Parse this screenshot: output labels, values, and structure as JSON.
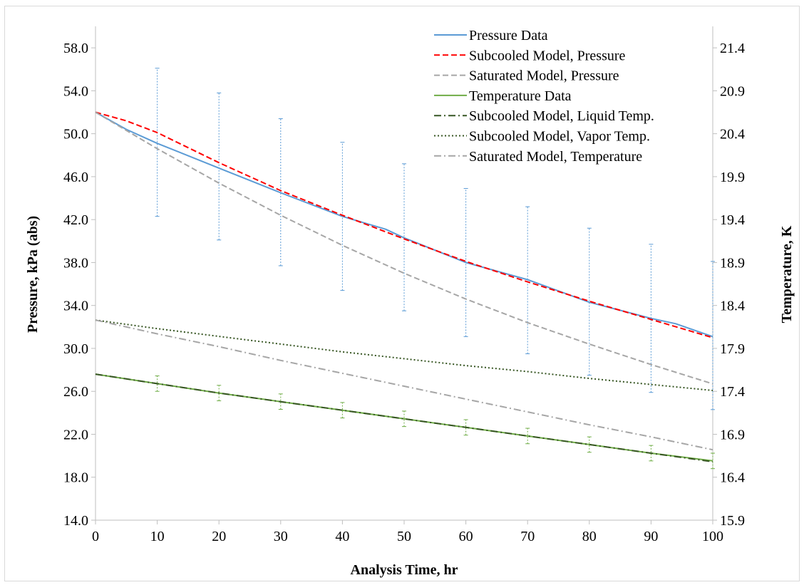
{
  "chart_data": {
    "type": "line",
    "xlabel": "Analysis Time, hr",
    "ylabel": "Pressure, kPa (abs)",
    "y2label": "Temperature, K",
    "xlim": [
      0,
      100
    ],
    "ylim": [
      14,
      60
    ],
    "y2lim": [
      15.9,
      21.65
    ],
    "x_ticks": [
      0,
      10,
      20,
      30,
      40,
      50,
      60,
      70,
      80,
      90,
      100
    ],
    "y_ticks": [
      "14.0",
      "18.0",
      "22.0",
      "26.0",
      "30.0",
      "34.0",
      "38.0",
      "42.0",
      "46.0",
      "50.0",
      "54.0",
      "58.0"
    ],
    "y2_ticks": [
      "15.9",
      "16.4",
      "16.9",
      "17.4",
      "17.9",
      "18.4",
      "18.9",
      "19.4",
      "19.9",
      "20.4",
      "20.9",
      "21.4"
    ],
    "grid": false,
    "legend_position": "top-right",
    "series": [
      {
        "name": "Pressure Data",
        "axis": "left",
        "color": "#5b9bd5",
        "dash": "solid",
        "x": [
          0,
          5,
          10,
          20,
          30,
          40,
          47,
          50,
          60,
          70,
          80,
          90,
          94,
          100
        ],
        "y": [
          52.0,
          50.4,
          49.1,
          46.8,
          44.5,
          42.3,
          41.1,
          40.3,
          38.0,
          36.4,
          34.3,
          32.8,
          32.3,
          31.1
        ]
      },
      {
        "name": "Subcooled Model, Pressure",
        "axis": "left",
        "color": "#ff0000",
        "dash": "dashed",
        "x": [
          0,
          5,
          10,
          20,
          30,
          40,
          50,
          60,
          70,
          80,
          90,
          100
        ],
        "y": [
          52.0,
          51.2,
          50.1,
          47.3,
          44.7,
          42.4,
          40.2,
          38.1,
          36.2,
          34.4,
          32.7,
          31.0
        ]
      },
      {
        "name": "Saturated Model, Pressure",
        "axis": "left",
        "color": "#a6a6a6",
        "dash": "dashed",
        "x": [
          0,
          10,
          20,
          30,
          40,
          50,
          60,
          70,
          80,
          90,
          100
        ],
        "y": [
          52.0,
          48.6,
          45.4,
          42.4,
          39.6,
          37.0,
          34.6,
          32.4,
          30.4,
          28.5,
          26.7
        ]
      },
      {
        "name": "Temperature Data",
        "axis": "right",
        "color": "#70ad47",
        "dash": "solid",
        "x": [
          0,
          10,
          20,
          30,
          40,
          50,
          60,
          70,
          80,
          90,
          100
        ],
        "y": [
          17.6,
          17.49,
          17.38,
          17.28,
          17.18,
          17.08,
          16.98,
          16.88,
          16.78,
          16.68,
          16.59
        ]
      },
      {
        "name": "Subcooled Model, Liquid Temp.",
        "axis": "right",
        "color": "#375623",
        "dash": "dashdot",
        "x": [
          0,
          10,
          20,
          30,
          40,
          50,
          60,
          70,
          80,
          90,
          100
        ],
        "y": [
          17.6,
          17.49,
          17.38,
          17.28,
          17.18,
          17.08,
          16.98,
          16.88,
          16.78,
          16.68,
          16.58
        ]
      },
      {
        "name": "Subcooled Model, Vapor Temp.",
        "axis": "right",
        "color": "#375623",
        "dash": "dotted",
        "x": [
          0,
          10,
          20,
          30,
          40,
          50,
          60,
          70,
          80,
          90,
          100
        ],
        "y": [
          18.23,
          18.13,
          18.04,
          17.95,
          17.86,
          17.78,
          17.7,
          17.63,
          17.55,
          17.48,
          17.41
        ]
      },
      {
        "name": "Saturated Model, Temperature",
        "axis": "right",
        "color": "#a6a6a6",
        "dash": "dashdot",
        "x": [
          0,
          10,
          20,
          30,
          40,
          50,
          60,
          70,
          80,
          90,
          100
        ],
        "y": [
          18.23,
          18.07,
          17.92,
          17.76,
          17.61,
          17.46,
          17.31,
          17.16,
          17.01,
          16.87,
          16.72
        ]
      }
    ],
    "error_bars": [
      {
        "series": "Pressure Data",
        "axis": "left",
        "color": "#5b9bd5",
        "x": [
          10,
          20,
          30,
          40,
          50,
          60,
          70,
          80,
          90,
          100
        ],
        "low": [
          42.3,
          40.1,
          37.7,
          35.4,
          33.5,
          31.1,
          29.5,
          27.5,
          25.9,
          24.3
        ],
        "high": [
          56.1,
          53.8,
          51.4,
          49.2,
          47.2,
          44.9,
          43.2,
          41.2,
          39.7,
          38.1
        ]
      },
      {
        "series": "Temperature Data",
        "axis": "right",
        "color": "#70ad47",
        "x": [
          10,
          20,
          30,
          40,
          50,
          60,
          70,
          80,
          90,
          100
        ],
        "low": [
          17.4,
          17.29,
          17.19,
          17.09,
          16.99,
          16.89,
          16.79,
          16.69,
          16.59,
          16.5
        ],
        "high": [
          17.58,
          17.47,
          17.37,
          17.27,
          17.17,
          17.07,
          16.97,
          16.87,
          16.77,
          16.68
        ]
      }
    ]
  }
}
